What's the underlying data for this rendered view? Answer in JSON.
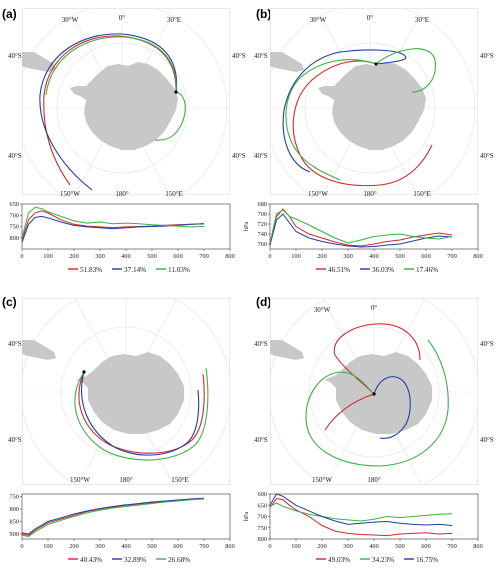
{
  "figure": {
    "panels": [
      {
        "letter": "(a)",
        "lon_labels": [
          "30°W",
          "0°",
          "30°E",
          "150°W",
          "180°",
          "150°E"
        ],
        "lat_labels": [
          "40°S",
          "40°S",
          "40°S",
          "40°S"
        ],
        "start_point_label": "",
        "colors": [
          "#d62728",
          "#1f3fa0",
          "#3cb043"
        ],
        "legend": [
          "51.83%",
          "37.14%",
          "11.03%"
        ]
      },
      {
        "letter": "(b)",
        "lon_labels": [
          "30°W",
          "0°",
          "30°E",
          "150°W",
          "180°",
          "150°E"
        ],
        "lat_labels": [
          "40°S",
          "40°S",
          "40°S",
          "40°S"
        ],
        "colors": [
          "#d62728",
          "#1f3fa0",
          "#3cb043"
        ],
        "legend": [
          "46.51%",
          "36.03%",
          "17.46%"
        ]
      },
      {
        "letter": "(c)",
        "lon_labels": [
          "150°W",
          "180°",
          "150°E"
        ],
        "lat_labels": [
          "40°S",
          "40°S"
        ],
        "colors": [
          "#d62728",
          "#1f3fa0",
          "#3cb043"
        ],
        "legend": [
          "40.43%",
          "32.89%",
          "26.68%"
        ]
      },
      {
        "letter": "(d)",
        "lon_labels": [
          "30°W",
          "0°",
          "150°W",
          "180°"
        ],
        "lat_labels": [
          "40°S",
          "40°S",
          "40°S",
          "40°S"
        ],
        "colors": [
          "#d62728",
          "#3cb043",
          "#1f3fa0"
        ],
        "legend": [
          "49.03%",
          "34.23%",
          "16.75%"
        ]
      }
    ]
  },
  "chart_data": [
    {
      "panel": "(a)",
      "type": "line",
      "ylabel": "hPa",
      "xlim": [
        0,
        800
      ],
      "ylim": [
        850,
        650
      ],
      "x_ticks": [
        0,
        100,
        200,
        300,
        400,
        500,
        600,
        700,
        800
      ],
      "y_ticks": [
        650,
        700,
        750,
        800
      ],
      "series": [
        {
          "name": "51.83%",
          "x": [
            0,
            25,
            50,
            75,
            100,
            150,
            200,
            250,
            300,
            350,
            400,
            450,
            500,
            550,
            600,
            650,
            700
          ],
          "values": [
            810,
            720,
            690,
            680,
            690,
            720,
            740,
            748,
            752,
            755,
            752,
            750,
            748,
            744,
            742,
            740,
            738
          ]
        },
        {
          "name": "37.14%",
          "x": [
            0,
            25,
            50,
            75,
            100,
            150,
            200,
            250,
            300,
            350,
            400,
            450,
            500,
            550,
            600,
            650,
            700
          ],
          "values": [
            820,
            740,
            710,
            705,
            712,
            730,
            745,
            752,
            756,
            760,
            756,
            752,
            750,
            748,
            744,
            740,
            738
          ]
        },
        {
          "name": "11.03%",
          "x": [
            0,
            25,
            50,
            75,
            100,
            150,
            200,
            250,
            300,
            350,
            400,
            450,
            500,
            550,
            600,
            650,
            700
          ],
          "values": [
            800,
            690,
            665,
            670,
            685,
            705,
            725,
            735,
            730,
            738,
            735,
            738,
            742,
            745,
            748,
            752,
            750
          ]
        }
      ]
    },
    {
      "panel": "(b)",
      "type": "line",
      "ylabel": "hPa",
      "xlim": [
        0,
        800
      ],
      "ylim": [
        770,
        680
      ],
      "x_ticks": [
        0,
        100,
        200,
        300,
        400,
        500,
        600,
        700,
        800
      ],
      "y_ticks": [
        680,
        700,
        720,
        740,
        760
      ],
      "series": [
        {
          "name": "46.51%",
          "x": [
            0,
            25,
            50,
            75,
            100,
            150,
            200,
            250,
            300,
            350,
            400,
            450,
            500,
            550,
            600,
            650,
            700
          ],
          "values": [
            760,
            705,
            690,
            705,
            725,
            740,
            748,
            756,
            762,
            764,
            760,
            755,
            752,
            746,
            742,
            738,
            742
          ]
        },
        {
          "name": "36.03%",
          "x": [
            0,
            25,
            50,
            75,
            100,
            150,
            200,
            250,
            300,
            350,
            400,
            450,
            500,
            550,
            600,
            650,
            700
          ],
          "values": [
            762,
            712,
            700,
            718,
            735,
            748,
            755,
            760,
            764,
            766,
            765,
            762,
            760,
            754,
            748,
            744,
            746
          ]
        },
        {
          "name": "17.46%",
          "x": [
            0,
            25,
            50,
            75,
            100,
            150,
            200,
            250,
            300,
            350,
            400,
            450,
            500,
            550,
            600,
            650,
            700
          ],
          "values": [
            758,
            700,
            692,
            705,
            710,
            722,
            735,
            748,
            758,
            752,
            745,
            742,
            740,
            745,
            748,
            750,
            745
          ]
        }
      ]
    },
    {
      "panel": "(c)",
      "type": "line",
      "ylabel": "hPa",
      "xlim": [
        0,
        800
      ],
      "ylim": [
        920,
        740
      ],
      "x_ticks": [
        0,
        100,
        200,
        300,
        400,
        500,
        600,
        700,
        800
      ],
      "y_ticks": [
        750,
        800,
        850,
        900
      ],
      "series": [
        {
          "name": "40.43%",
          "x": [
            0,
            25,
            50,
            100,
            150,
            200,
            250,
            300,
            350,
            400,
            450,
            500,
            550,
            600,
            650,
            700
          ],
          "values": [
            900,
            905,
            885,
            855,
            840,
            825,
            810,
            800,
            792,
            785,
            780,
            775,
            770,
            765,
            760,
            758
          ]
        },
        {
          "name": "32.89%",
          "x": [
            0,
            25,
            50,
            100,
            150,
            200,
            250,
            300,
            350,
            400,
            450,
            500,
            550,
            600,
            650,
            700
          ],
          "values": [
            895,
            900,
            880,
            850,
            835,
            820,
            808,
            798,
            790,
            783,
            778,
            772,
            768,
            764,
            760,
            757
          ]
        },
        {
          "name": "26.68%",
          "x": [
            0,
            25,
            50,
            100,
            150,
            200,
            250,
            300,
            350,
            400,
            450,
            500,
            550,
            600,
            650,
            700
          ],
          "values": [
            905,
            910,
            892,
            862,
            845,
            830,
            815,
            805,
            796,
            790,
            784,
            778,
            772,
            768,
            763,
            760
          ]
        }
      ]
    },
    {
      "panel": "(d)",
      "type": "line",
      "ylabel": "hPa",
      "xlim": [
        0,
        800
      ],
      "ylim": [
        800,
        600
      ],
      "x_ticks": [
        0,
        100,
        200,
        300,
        400,
        500,
        600,
        700,
        800
      ],
      "y_ticks": [
        600,
        650,
        700,
        750,
        800
      ],
      "series": [
        {
          "name": "49.03%",
          "x": [
            0,
            25,
            50,
            75,
            100,
            150,
            200,
            250,
            300,
            350,
            400,
            450,
            500,
            550,
            600,
            650,
            700
          ],
          "values": [
            660,
            620,
            625,
            650,
            670,
            700,
            740,
            765,
            775,
            780,
            782,
            785,
            778,
            775,
            772,
            778,
            775
          ]
        },
        {
          "name": "34.23%",
          "x": [
            0,
            25,
            50,
            75,
            100,
            150,
            200,
            250,
            300,
            350,
            400,
            450,
            500,
            550,
            600,
            650,
            700
          ],
          "values": [
            655,
            640,
            655,
            665,
            675,
            690,
            700,
            710,
            715,
            720,
            712,
            700,
            705,
            700,
            695,
            690,
            688
          ]
        },
        {
          "name": "16.75%",
          "x": [
            0,
            25,
            50,
            75,
            100,
            150,
            200,
            250,
            300,
            350,
            400,
            450,
            500,
            550,
            600,
            650,
            700
          ],
          "values": [
            650,
            600,
            610,
            630,
            650,
            675,
            700,
            720,
            735,
            730,
            725,
            722,
            730,
            735,
            738,
            735,
            740
          ]
        }
      ]
    }
  ]
}
